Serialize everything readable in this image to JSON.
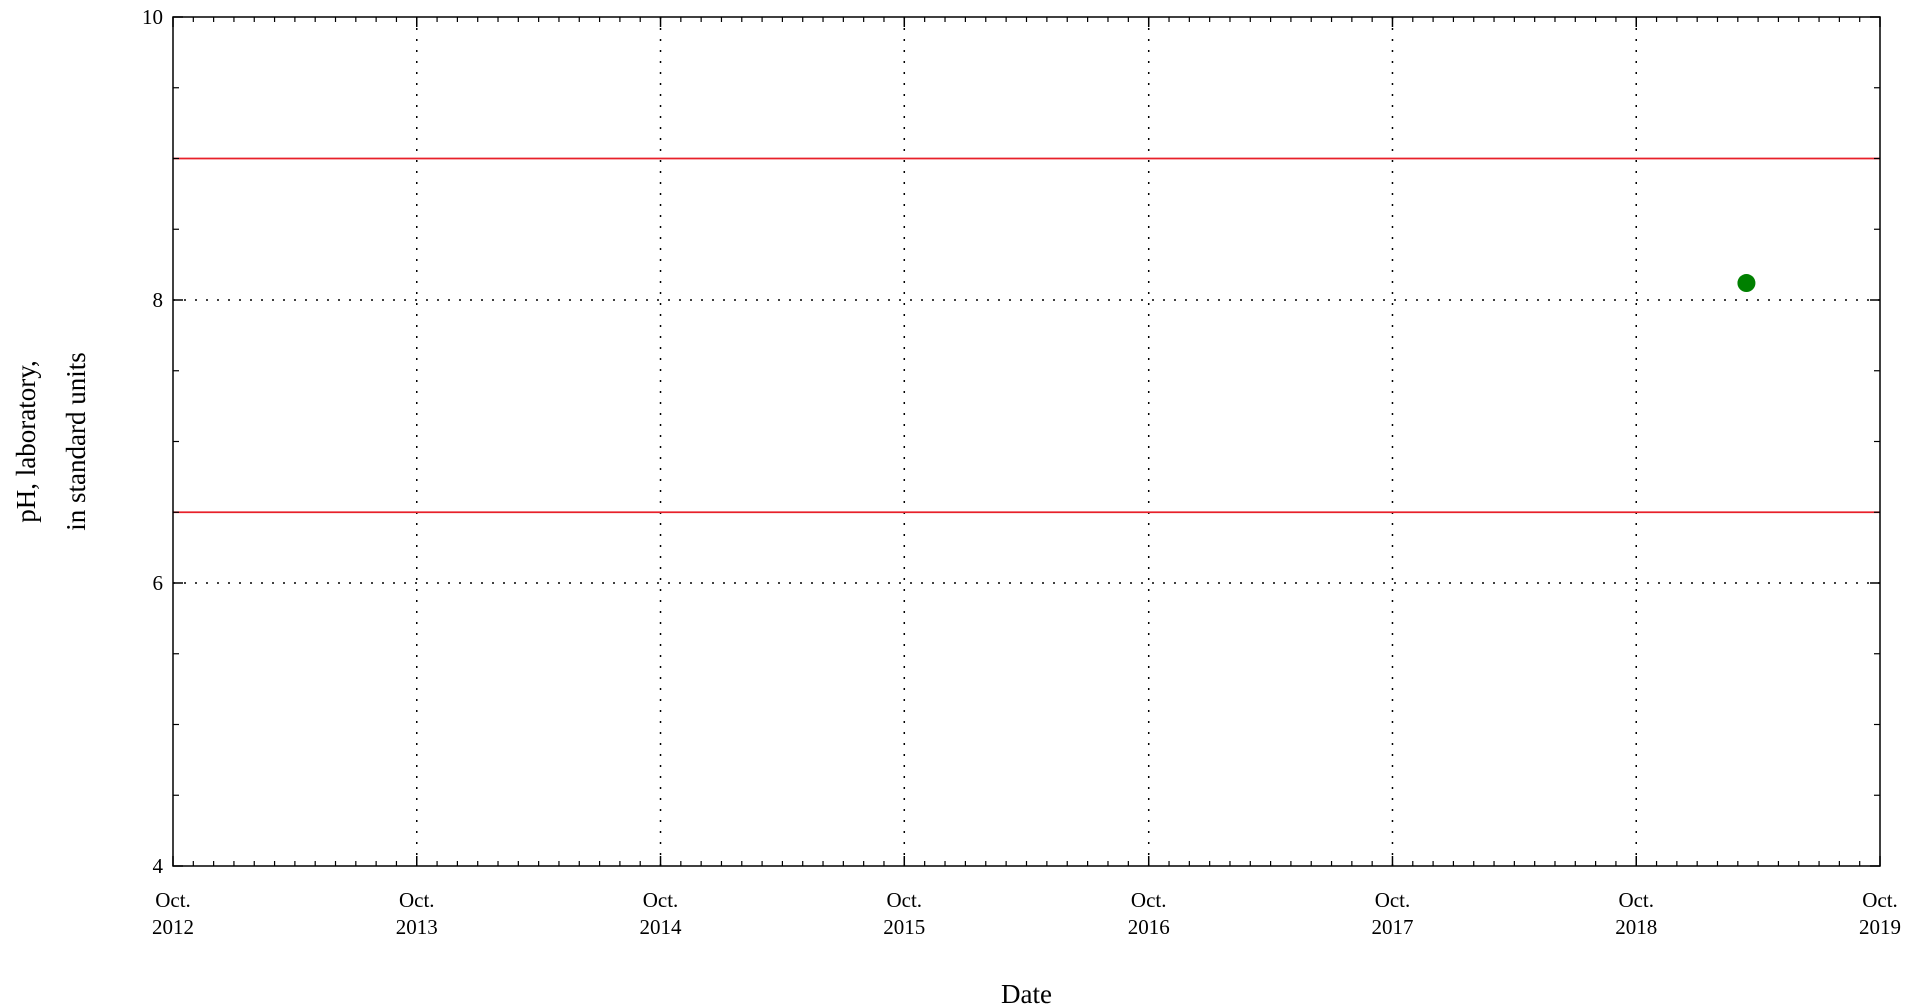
{
  "chart_data": {
    "type": "scatter",
    "title": "",
    "xlabel": "Date",
    "ylabel_lines": [
      "pH, laboratory,",
      "in standard units"
    ],
    "xlim": [
      "2012-10-01",
      "2019-10-01"
    ],
    "ylim": [
      4,
      10
    ],
    "y_ticks": [
      4,
      6,
      8,
      10
    ],
    "x_ticks": [
      {
        "date": "2012-10-01",
        "line1": "Oct.",
        "line2": "2012"
      },
      {
        "date": "2013-10-01",
        "line1": "Oct.",
        "line2": "2013"
      },
      {
        "date": "2014-10-01",
        "line1": "Oct.",
        "line2": "2014"
      },
      {
        "date": "2015-10-01",
        "line1": "Oct.",
        "line2": "2015"
      },
      {
        "date": "2016-10-01",
        "line1": "Oct.",
        "line2": "2016"
      },
      {
        "date": "2017-10-01",
        "line1": "Oct.",
        "line2": "2017"
      },
      {
        "date": "2018-10-01",
        "line1": "Oct.",
        "line2": "2018"
      },
      {
        "date": "2019-10-01",
        "line1": "Oct.",
        "line2": "2019"
      }
    ],
    "grid": true,
    "points": [
      {
        "x": "2019-03-15",
        "y": 8.12
      }
    ],
    "reference_lines": [
      {
        "y": 9.0
      },
      {
        "y": 6.5
      }
    ],
    "colors": {
      "point": "#008000",
      "reference_line": "#e8202a",
      "grid": "#000000",
      "axis": "#000000"
    }
  }
}
